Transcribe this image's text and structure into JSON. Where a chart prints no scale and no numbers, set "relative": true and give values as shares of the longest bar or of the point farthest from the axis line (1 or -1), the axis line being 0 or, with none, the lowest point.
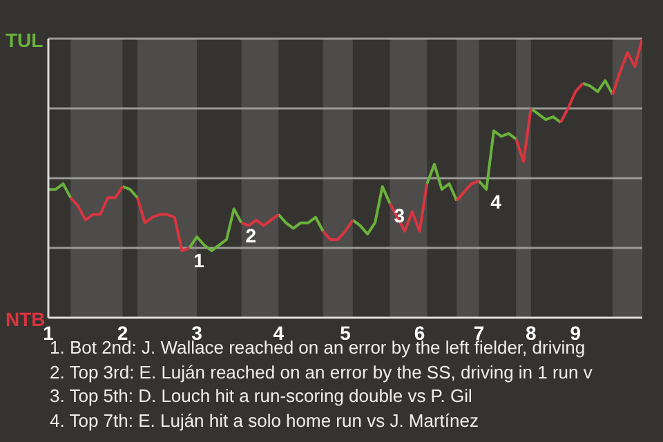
{
  "chart_data": {
    "type": "line",
    "relative": true,
    "categories": [
      "1",
      null,
      null,
      null,
      null,
      null,
      null,
      null,
      null,
      null,
      "2",
      null,
      null,
      null,
      null,
      null,
      null,
      null,
      null,
      null,
      "3",
      null,
      null,
      null,
      null,
      null,
      null,
      null,
      null,
      null,
      null,
      "4",
      null,
      null,
      null,
      null,
      null,
      null,
      null,
      null,
      "5",
      null,
      null,
      null,
      null,
      null,
      null,
      null,
      null,
      null,
      "6",
      null,
      null,
      null,
      null,
      null,
      null,
      null,
      "7",
      null,
      null,
      null,
      null,
      null,
      null,
      "8",
      null,
      null,
      null,
      null,
      null,
      "9",
      null,
      null,
      null,
      null,
      null,
      null,
      null,
      null,
      null
    ],
    "series": [
      {
        "color": "#6ab23c",
        "values": [
          0.46,
          0.46,
          0.48,
          0.43,
          null,
          null,
          null,
          null,
          null,
          null,
          0.47,
          0.46,
          0.43,
          null,
          null,
          null,
          null,
          null,
          null,
          0.25,
          0.29,
          0.26,
          0.24,
          0.26,
          0.28,
          0.39,
          0.34,
          null,
          null,
          null,
          null,
          0.37,
          0.34,
          0.32,
          0.34,
          0.34,
          0.36,
          0.31,
          null,
          null,
          null,
          0.35,
          0.33,
          0.3,
          0.34,
          0.47,
          0.41,
          null,
          null,
          null,
          null,
          0.48,
          0.55,
          0.46,
          0.48,
          0.42,
          null,
          null,
          0.49,
          0.46,
          0.67,
          0.65,
          0.66,
          0.64,
          null,
          0.75,
          0.73,
          0.71,
          0.72,
          0.7,
          null,
          null,
          0.84,
          0.83,
          0.81,
          0.85,
          0.8,
          null,
          null,
          null,
          null
        ]
      },
      {
        "color": "#d9353f",
        "values": [
          null,
          null,
          null,
          0.43,
          0.4,
          0.35,
          0.37,
          0.37,
          0.43,
          0.43,
          0.47,
          null,
          0.43,
          0.34,
          0.36,
          0.37,
          0.37,
          0.36,
          0.24,
          0.25,
          null,
          null,
          null,
          null,
          null,
          null,
          0.34,
          0.33,
          0.35,
          0.33,
          0.35,
          0.37,
          null,
          null,
          null,
          null,
          null,
          0.31,
          0.28,
          0.28,
          0.31,
          0.35,
          null,
          null,
          null,
          null,
          0.41,
          0.36,
          0.31,
          0.38,
          0.31,
          0.48,
          null,
          null,
          null,
          0.42,
          0.45,
          0.48,
          0.49,
          null,
          null,
          null,
          null,
          0.64,
          0.56,
          0.75,
          null,
          null,
          null,
          0.7,
          0.75,
          0.81,
          0.84,
          null,
          null,
          null,
          0.8,
          0.88,
          0.95,
          0.9,
          1.0
        ]
      }
    ],
    "marker": "none",
    "line_style": "solid",
    "ref_lines": [
      {
        "axis": "y",
        "value": 0.25,
        "color": "#9a9a98"
      },
      {
        "axis": "y",
        "value": 0.5,
        "color": "#9a9a98"
      },
      {
        "axis": "y",
        "value": 0.75,
        "color": "#9a9a98"
      },
      {
        "axis": "y",
        "value": 1,
        "color": "#9a9a98"
      }
    ],
    "annotations": [
      "TUL",
      "NTB",
      "1",
      "2",
      "3",
      "4",
      "1. Bot 2nd: J. Wallace reached on an error by the left fielder, driving",
      "2. Top 3rd: E. Luján reached on an error by the SS, driving in 1 run v",
      "3. Top 5th: D. Louch hit a run-scoring double vs P. Gil",
      "4. Top 7th: E. Luján hit a solo home run vs J. Martínez"
    ]
  }
}
